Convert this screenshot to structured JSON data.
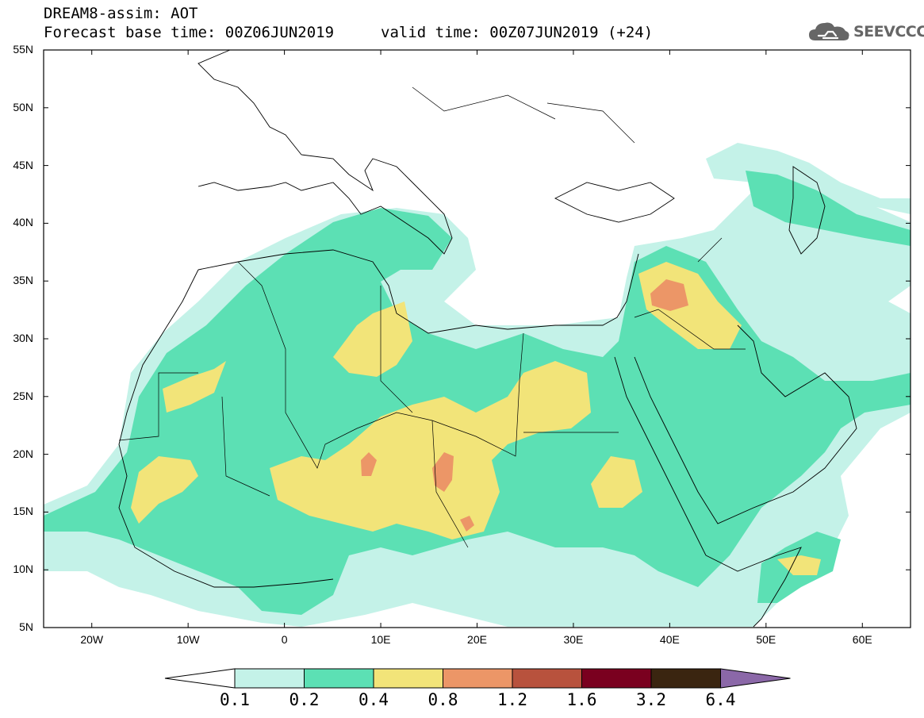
{
  "header": {
    "title": "DREAM8-assim: AOT",
    "base_time": "Forecast base time: 00Z06JUN2019",
    "valid_time": "valid time: 00Z07JUN2019 (+24)",
    "logo_text": "SEEVCCC"
  },
  "map": {
    "lon_range": [
      -25,
      65
    ],
    "lat_range": [
      5,
      55
    ],
    "lat_ticks": [
      "5N",
      "10N",
      "15N",
      "20N",
      "25N",
      "30N",
      "35N",
      "40N",
      "45N",
      "50N",
      "55N"
    ],
    "lon_ticks": [
      "20W",
      "10W",
      "0",
      "10E",
      "20E",
      "30E",
      "40E",
      "50E",
      "60E"
    ],
    "field": "AOT (dust aerosol optical thickness)"
  },
  "colorbar": {
    "labels": [
      "0.1",
      "0.2",
      "0.4",
      "0.8",
      "1.2",
      "1.6",
      "3.2",
      "6.4"
    ],
    "colors": [
      "#ffffff",
      "#c4f2e8",
      "#5ce0b4",
      "#f2e479",
      "#ec9667",
      "#b8523d",
      "#7a001f",
      "#3a2510",
      "#8b68a8"
    ]
  }
}
